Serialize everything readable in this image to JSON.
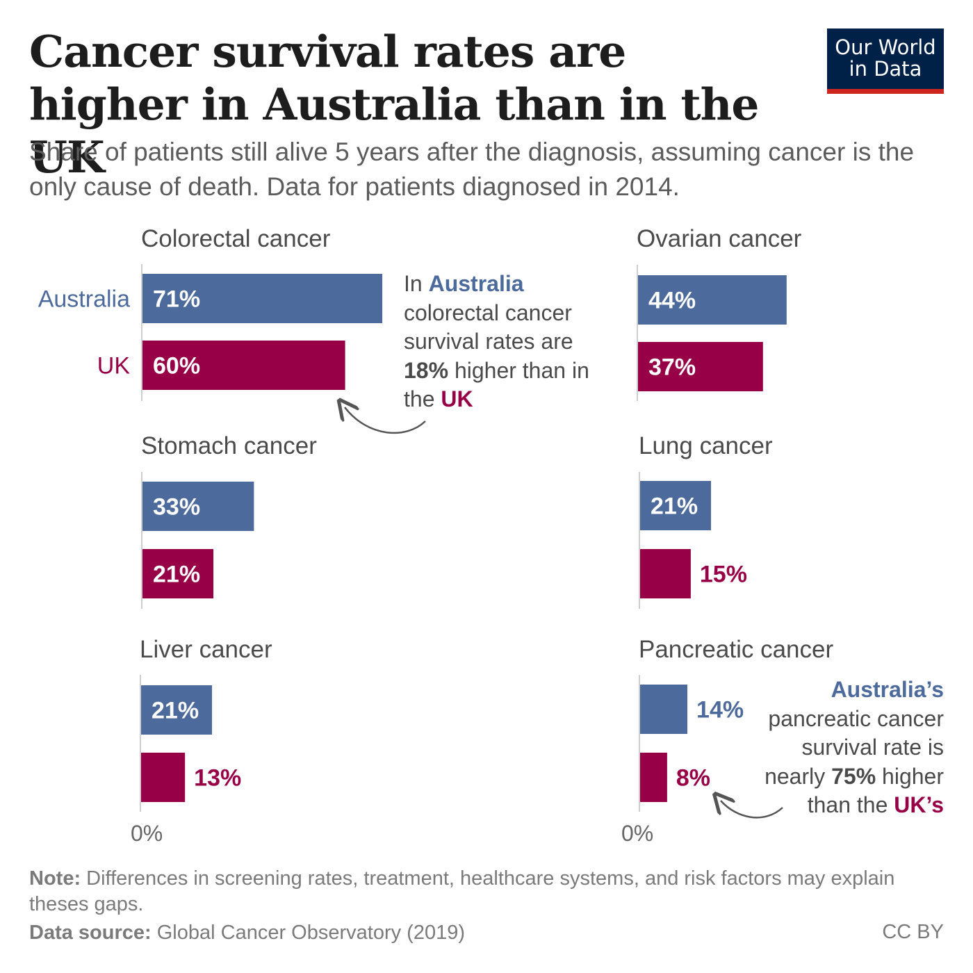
{
  "header": {
    "title": "Cancer survival rates are higher in Australia than in the UK",
    "subtitle": "Share of patients still alive 5 years after the diagnosis, assuming cancer is the only cause of death. Data for patients diagnosed in 2014.",
    "logo_line1": "Our World",
    "logo_line2": "in Data"
  },
  "colors": {
    "australia": "#4c6a9c",
    "uk": "#970046",
    "axis": "#bdbdbd"
  },
  "chart_data": {
    "type": "bar",
    "orientation": "horizontal",
    "series": [
      {
        "name": "Australia",
        "color": "#4c6a9c"
      },
      {
        "name": "UK",
        "color": "#970046"
      }
    ],
    "panels": [
      {
        "title": "Colorectal cancer",
        "values": [
          71,
          60
        ],
        "labels": [
          "71%",
          "60%"
        ],
        "show_legend_labels": true
      },
      {
        "title": "Ovarian cancer",
        "values": [
          44,
          37
        ],
        "labels": [
          "44%",
          "37%"
        ]
      },
      {
        "title": "Stomach cancer",
        "values": [
          33,
          21
        ],
        "labels": [
          "33%",
          "21%"
        ]
      },
      {
        "title": "Lung cancer",
        "values": [
          21,
          15
        ],
        "labels": [
          "21%",
          "15%"
        ]
      },
      {
        "title": "Liver cancer",
        "values": [
          21,
          13
        ],
        "labels": [
          "21%",
          "13%"
        ]
      },
      {
        "title": "Pancreatic cancer",
        "values": [
          14,
          8
        ],
        "labels": [
          "14%",
          "8%"
        ]
      }
    ],
    "axis_label": "0%",
    "unit": "%"
  },
  "annotations": {
    "colorectal": {
      "p1": "In ",
      "country1": "Australia",
      "p2": "colorectal cancer survival rates are ",
      "pct": "18%",
      "p3": " higher than in the ",
      "country2": "UK"
    },
    "pancreatic": {
      "country1": "Australia’s",
      "p1": "pancreatic cancer survival rate is nearly ",
      "pct": "75%",
      "p2": " higher than the ",
      "country2": "UK’s"
    }
  },
  "footer": {
    "note_label": "Note:",
    "note_text": "Differences in screening rates, treatment, healthcare systems, and risk factors may explain theses gaps.",
    "source_label": "Data source:",
    "source_text": "Global Cancer Observatory (2019)",
    "license": "CC BY"
  }
}
